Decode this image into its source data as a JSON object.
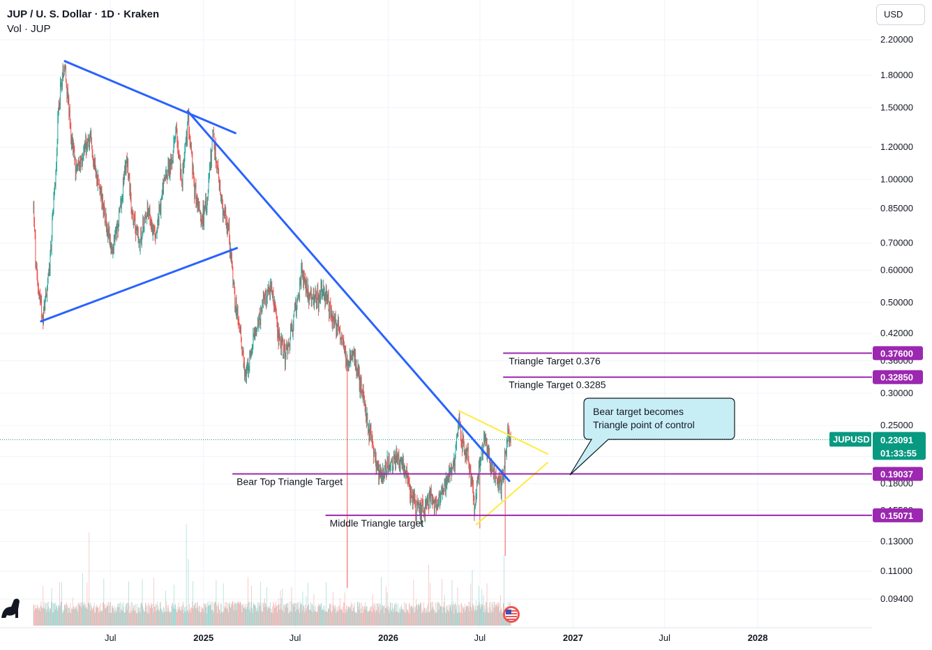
{
  "header": {
    "title": "JUP / U. S. Dollar · 1D · Kraken",
    "volume_label": "Vol · JUP",
    "currency": "USD"
  },
  "colors": {
    "up": "#26a69a",
    "down": "#ef5350",
    "trendline": "#2962ff",
    "triangle": "#ffeb3b",
    "target": "#9c27b0",
    "price_badge": "#089981",
    "callout_fill": "#c8eef5"
  },
  "chart_data": {
    "type": "candlestick",
    "title": "JUP / U. S. Dollar · 1D · Kraken",
    "scale": "log",
    "ylim": [
      0.085,
      2.35
    ],
    "xlim": [
      "2024-01-31",
      "2028-07-20"
    ],
    "x_ticks": [
      {
        "date": "2024-07-01",
        "label": "Jul",
        "bold": false
      },
      {
        "date": "2025-01-01",
        "label": "2025",
        "bold": true
      },
      {
        "date": "2025-07-01",
        "label": "Jul",
        "bold": false
      },
      {
        "date": "2026-01-01",
        "label": "2026",
        "bold": true
      },
      {
        "date": "2026-07-01",
        "label": "Jul",
        "bold": false
      },
      {
        "date": "2027-01-01",
        "label": "2027",
        "bold": true
      },
      {
        "date": "2027-07-01",
        "label": "Jul",
        "bold": false
      },
      {
        "date": "2028-01-01",
        "label": "2028",
        "bold": true
      }
    ],
    "y_ticks": [
      {
        "value": 2.2,
        "label": "2.20000"
      },
      {
        "value": 1.8,
        "label": "1.80000"
      },
      {
        "value": 1.5,
        "label": "1.50000"
      },
      {
        "value": 1.2,
        "label": "1.20000"
      },
      {
        "value": 1.0,
        "label": "1.00000"
      },
      {
        "value": 0.85,
        "label": "0.85000"
      },
      {
        "value": 0.7,
        "label": "0.70000"
      },
      {
        "value": 0.6,
        "label": "0.60000"
      },
      {
        "value": 0.5,
        "label": "0.50000"
      },
      {
        "value": 0.42,
        "label": "0.42000"
      },
      {
        "value": 0.36,
        "label": "0.36000"
      },
      {
        "value": 0.3,
        "label": "0.30000"
      },
      {
        "value": 0.25,
        "label": "0.25000"
      },
      {
        "value": 0.21,
        "label": "0.21000"
      },
      {
        "value": 0.18,
        "label": "0.18000"
      },
      {
        "value": 0.155,
        "label": "0.15500"
      },
      {
        "value": 0.13,
        "label": "0.13000"
      },
      {
        "value": 0.11,
        "label": "0.11000"
      },
      {
        "value": 0.094,
        "label": "0.09400"
      }
    ],
    "price_path": [
      [
        "2024-01-31",
        0.86
      ],
      [
        "2024-02-05",
        0.6
      ],
      [
        "2024-02-18",
        0.46
      ],
      [
        "2024-03-01",
        0.58
      ],
      [
        "2024-03-12",
        0.9
      ],
      [
        "2024-03-22",
        1.6
      ],
      [
        "2024-04-02",
        1.95
      ],
      [
        "2024-04-12",
        1.35
      ],
      [
        "2024-04-25",
        1.05
      ],
      [
        "2024-05-10",
        1.2
      ],
      [
        "2024-05-22",
        1.25
      ],
      [
        "2024-06-05",
        1.02
      ],
      [
        "2024-06-20",
        0.82
      ],
      [
        "2024-07-05",
        0.66
      ],
      [
        "2024-07-18",
        0.8
      ],
      [
        "2024-08-02",
        1.15
      ],
      [
        "2024-08-12",
        0.84
      ],
      [
        "2024-08-28",
        0.7
      ],
      [
        "2024-09-12",
        0.85
      ],
      [
        "2024-09-28",
        0.72
      ],
      [
        "2024-10-12",
        0.95
      ],
      [
        "2024-10-28",
        1.08
      ],
      [
        "2024-11-08",
        1.3
      ],
      [
        "2024-11-20",
        1.0
      ],
      [
        "2024-12-02",
        1.4
      ],
      [
        "2024-12-14",
        0.95
      ],
      [
        "2024-12-28",
        0.8
      ],
      [
        "2025-01-08",
        0.88
      ],
      [
        "2025-01-20",
        1.3
      ],
      [
        "2025-01-28",
        1.05
      ],
      [
        "2025-02-10",
        0.82
      ],
      [
        "2025-02-20",
        0.75
      ],
      [
        "2025-03-05",
        0.48
      ],
      [
        "2025-03-15",
        0.42
      ],
      [
        "2025-03-24",
        0.32
      ],
      [
        "2025-04-05",
        0.38
      ],
      [
        "2025-04-18",
        0.45
      ],
      [
        "2025-05-02",
        0.5
      ],
      [
        "2025-05-15",
        0.56
      ],
      [
        "2025-05-28",
        0.42
      ],
      [
        "2025-06-12",
        0.37
      ],
      [
        "2025-06-28",
        0.45
      ],
      [
        "2025-07-15",
        0.6
      ],
      [
        "2025-07-28",
        0.52
      ],
      [
        "2025-08-12",
        0.5
      ],
      [
        "2025-08-25",
        0.54
      ],
      [
        "2025-09-08",
        0.48
      ],
      [
        "2025-09-22",
        0.43
      ],
      [
        "2025-10-05",
        0.4
      ],
      [
        "2025-10-12",
        0.35
      ],
      [
        "2025-10-25",
        0.38
      ],
      [
        "2025-11-08",
        0.31
      ],
      [
        "2025-11-22",
        0.25
      ],
      [
        "2025-12-05",
        0.21
      ],
      [
        "2025-12-18",
        0.185
      ],
      [
        "2026-01-02",
        0.2
      ],
      [
        "2026-01-15",
        0.21
      ],
      [
        "2026-01-30",
        0.2
      ],
      [
        "2026-02-12",
        0.178
      ],
      [
        "2026-02-25",
        0.158
      ],
      [
        "2026-03-10",
        0.155
      ],
      [
        "2026-03-25",
        0.17
      ],
      [
        "2026-04-08",
        0.16
      ],
      [
        "2026-04-20",
        0.175
      ],
      [
        "2026-05-02",
        0.19
      ],
      [
        "2026-05-12",
        0.205
      ],
      [
        "2026-05-20",
        0.26
      ],
      [
        "2026-05-28",
        0.225
      ],
      [
        "2026-06-10",
        0.205
      ],
      [
        "2026-06-20",
        0.16
      ],
      [
        "2026-06-30",
        0.2
      ],
      [
        "2026-07-10",
        0.235
      ],
      [
        "2026-07-22",
        0.2
      ],
      [
        "2026-08-02",
        0.19
      ],
      [
        "2026-08-12",
        0.175
      ],
      [
        "2026-08-18",
        0.2
      ],
      [
        "2026-08-25",
        0.238
      ],
      [
        "2026-08-31",
        0.23091
      ]
    ],
    "spikes": [
      {
        "date": "2025-10-12",
        "low": 0.1,
        "high": 0.34
      },
      {
        "date": "2026-07-01",
        "low": 0.14,
        "high": 0.21
      },
      {
        "date": "2026-08-20",
        "low": 0.12,
        "high": 0.2
      }
    ],
    "volume_spikes": [
      {
        "date": "2024-05-20",
        "rel": 0.92
      },
      {
        "date": "2024-11-28",
        "rel": 1.0
      },
      {
        "date": "2024-12-02",
        "rel": 0.66
      },
      {
        "date": "2026-03-22",
        "rel": 0.6
      },
      {
        "date": "2026-06-16",
        "rel": 0.55
      },
      {
        "date": "2026-08-18",
        "rel": 0.7
      }
    ],
    "current_price": 0.23091,
    "symbol": "JUPUSD",
    "price_label": "0.23091",
    "countdown": "01:33:55",
    "trendlines": [
      {
        "kind": "blue",
        "from": [
          "2024-04-02",
          1.95
        ],
        "to": [
          "2025-03-05",
          1.3
        ]
      },
      {
        "kind": "blue",
        "from": [
          "2024-02-15",
          0.45
        ],
        "to": [
          "2025-03-08",
          0.68
        ]
      },
      {
        "kind": "blue",
        "from": [
          "2024-12-01",
          1.47
        ],
        "to": [
          "2026-08-28",
          0.183
        ]
      },
      {
        "kind": "yellow",
        "from": [
          "2026-05-20",
          0.272
        ],
        "to": [
          "2026-11-12",
          0.213
        ]
      },
      {
        "kind": "yellow",
        "from": [
          "2026-06-24",
          0.143
        ],
        "to": [
          "2026-11-12",
          0.203
        ]
      }
    ],
    "target_lines": [
      {
        "value": 0.376,
        "label": "0.37600",
        "from": "2026-08-16",
        "annotation": "Triangle Target 0.376"
      },
      {
        "value": 0.3285,
        "label": "0.32850",
        "from": "2026-08-16",
        "annotation": "Triangle Target 0.3285"
      },
      {
        "value": 0.19037,
        "label": "0.19037",
        "from": "2025-02-27",
        "annotation": "Bear Top Triangle Target"
      },
      {
        "value": 0.15071,
        "label": "0.15071",
        "from": "2025-08-30",
        "annotation": "Middle Triangle target"
      }
    ],
    "callout": {
      "line1": "Bear target becomes",
      "line2": "Triangle point of control"
    }
  }
}
